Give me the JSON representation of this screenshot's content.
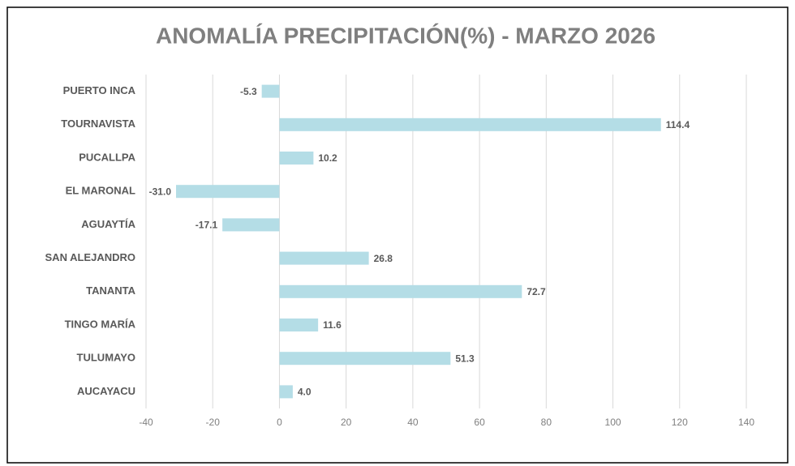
{
  "chart_data": {
    "type": "hbar",
    "title": "ANOMALÍA PRECIPITACIÓN(%) - MARZO 2026",
    "categories": [
      "PUERTO INCA",
      "TOURNAVISTA",
      "PUCALLPA",
      "EL MARONAL",
      "AGUAYTÍA",
      "SAN ALEJANDRO",
      "TANANTA",
      "TINGO MARÍA",
      "TULUMAYO",
      "AUCAYACU"
    ],
    "values": [
      -5.3,
      114.4,
      10.2,
      -31.0,
      -17.1,
      26.8,
      72.7,
      11.6,
      51.3,
      4.0
    ],
    "value_labels": [
      "-5.3",
      "114.4",
      "10.2",
      "-31.0",
      "-17.1",
      "26.8",
      "72.7",
      "11.6",
      "51.3",
      "4.0"
    ],
    "color": "#b4dde6",
    "xlim": [
      -40,
      140
    ],
    "xticks": [
      -40,
      -20,
      0,
      20,
      40,
      60,
      80,
      100,
      120,
      140
    ],
    "grid": true
  }
}
